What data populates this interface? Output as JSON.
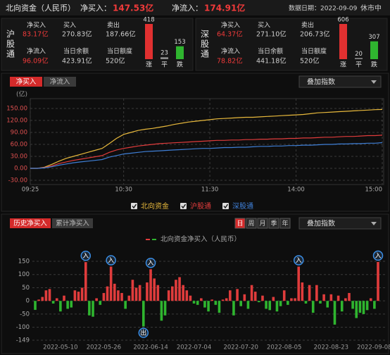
{
  "header": {
    "title": "北向资金（人民币）",
    "net_buy_label": "净买入：",
    "net_buy": "147.53亿",
    "net_inflow_label": "净流入：",
    "net_inflow": "174.91亿",
    "date": "数据日期：2022-09-09",
    "status": "休市中"
  },
  "panels": [
    {
      "name": "沪股通",
      "fields": [
        {
          "label": "净买入",
          "value": "83.17亿"
        },
        {
          "label": "买入",
          "value": "270.83亿"
        },
        {
          "label": "卖出",
          "value": "187.66亿"
        },
        {
          "label": "净流入",
          "value": "96.09亿"
        },
        {
          "label": "当日余额",
          "value": "423.91亿"
        },
        {
          "label": "当日额度",
          "value": "520亿"
        }
      ],
      "breadth": {
        "counts": [
          418,
          23,
          153
        ],
        "labels": [
          "涨",
          "平",
          "跌"
        ],
        "colors": [
          "#e03030",
          "#8a8a8a",
          "#2fb52f"
        ]
      }
    },
    {
      "name": "深股通",
      "fields": [
        {
          "label": "净买入",
          "value": "64.37亿"
        },
        {
          "label": "买入",
          "value": "271.10亿"
        },
        {
          "label": "卖出",
          "value": "206.73亿"
        },
        {
          "label": "净流入",
          "value": "78.82亿"
        },
        {
          "label": "当日余额",
          "value": "441.18亿"
        },
        {
          "label": "当日额度",
          "value": "520亿"
        }
      ],
      "breadth": {
        "counts": [
          606,
          20,
          307
        ],
        "labels": [
          "涨",
          "平",
          "跌"
        ],
        "colors": [
          "#e03030",
          "#8a8a8a",
          "#2fb52f"
        ]
      }
    }
  ],
  "controls": {
    "top_tabs": [
      "净买入",
      "净流入"
    ],
    "top_dropdown": "叠加指数",
    "bottom_tabs": [
      "历史净买入",
      "累计净买入"
    ],
    "periods": [
      "日",
      "周",
      "月",
      "季",
      "年"
    ],
    "bottom_dropdown": "叠加指数"
  },
  "chart_data": [
    {
      "type": "line",
      "y_unit": "(亿)",
      "grid": true,
      "categories": [
        "09:25",
        null,
        null,
        null,
        null,
        null,
        null,
        null,
        null,
        null,
        null,
        null,
        null,
        "10:30",
        null,
        null,
        null,
        null,
        null,
        null,
        null,
        null,
        null,
        null,
        null,
        "11:30",
        null,
        null,
        null,
        null,
        null,
        null,
        null,
        null,
        null,
        null,
        null,
        "14:00",
        null,
        null,
        null,
        null,
        null,
        null,
        null,
        null,
        null,
        null,
        null,
        "15:00"
      ],
      "ylim": [
        -30,
        150
      ],
      "yticks": [
        {
          "value": 150,
          "label": "150.00"
        },
        {
          "value": 120,
          "label": "120.00"
        },
        {
          "value": 90,
          "label": "90.00"
        },
        {
          "value": 60,
          "label": "60.00"
        },
        {
          "value": 30,
          "label": "30.00"
        },
        {
          "value": 0,
          "label": "0.00"
        },
        {
          "value": -30,
          "label": "-30.00"
        }
      ],
      "series": [
        {
          "name": "北向资金",
          "color": "#e8b93c",
          "values": [
            0,
            0,
            3,
            10,
            18,
            25,
            30,
            35,
            40,
            45,
            50,
            62,
            75,
            85,
            90,
            95,
            98,
            100,
            103,
            106,
            110,
            113,
            116,
            118,
            120,
            122,
            124,
            125,
            126,
            127,
            128,
            128,
            129,
            130,
            131,
            132,
            133,
            134,
            135,
            137,
            139,
            140,
            141,
            142,
            143,
            144,
            145,
            146,
            147,
            147.53
          ]
        },
        {
          "name": "沪股通",
          "color": "#e03c3c",
          "values": [
            0,
            0,
            2,
            6,
            12,
            16,
            20,
            23,
            26,
            29,
            32,
            40,
            46,
            50,
            53,
            56,
            58,
            60,
            62,
            63,
            64,
            65,
            66,
            67,
            68,
            69,
            70,
            70,
            71,
            71,
            72,
            72,
            73,
            73,
            74,
            74,
            75,
            75,
            76,
            76,
            77,
            78,
            78,
            79,
            80,
            80,
            81,
            82,
            82,
            83.17
          ]
        },
        {
          "name": "深股通",
          "color": "#3f7fd6",
          "values": [
            0,
            0,
            1,
            4,
            8,
            11,
            14,
            16,
            18,
            20,
            22,
            28,
            32,
            36,
            38,
            40,
            42,
            43,
            44,
            45,
            46,
            47,
            48,
            49,
            50,
            50,
            51,
            52,
            52,
            53,
            53,
            54,
            55,
            55,
            56,
            56,
            57,
            57,
            58,
            58,
            59,
            60,
            60,
            61,
            61,
            62,
            62,
            63,
            63,
            64.37
          ]
        }
      ]
    },
    {
      "type": "bar",
      "name": "北向资金净买入（人民币）",
      "grid": true,
      "colors": {
        "positive": "#e03c3c",
        "negative": "#2fb52f",
        "marker": "#3a8ee6"
      },
      "categories": [
        null,
        null,
        null,
        null,
        null,
        null,
        null,
        "2022-05-10",
        null,
        null,
        null,
        null,
        null,
        null,
        null,
        null,
        null,
        null,
        null,
        "2022-05-26",
        null,
        null,
        null,
        null,
        null,
        null,
        null,
        null,
        null,
        null,
        null,
        null,
        "2022-06-14",
        null,
        null,
        null,
        null,
        null,
        null,
        null,
        null,
        null,
        null,
        null,
        "2022-07-04",
        null,
        null,
        null,
        null,
        null,
        null,
        null,
        null,
        null,
        null,
        null,
        null,
        "2022-07-20",
        null,
        null,
        null,
        null,
        null,
        null,
        null,
        null,
        null,
        null,
        null,
        "2022-08-05",
        null,
        null,
        null,
        null,
        null,
        null,
        null,
        null,
        null,
        null,
        null,
        null,
        "2022-08-23",
        null,
        null,
        null,
        null,
        null,
        null,
        null,
        null,
        null,
        null,
        null,
        "2022-09-08",
        null
      ],
      "values": [
        -34,
        5,
        15,
        40,
        45,
        -10,
        10,
        -40,
        20,
        -30,
        -25,
        40,
        35,
        50,
        147,
        -55,
        -60,
        10,
        -15,
        30,
        55,
        130,
        65,
        40,
        30,
        -30,
        20,
        80,
        50,
        60,
        -97,
        70,
        120,
        85,
        60,
        -75,
        -55,
        40,
        55,
        80,
        90,
        60,
        40,
        20,
        -10,
        -15,
        10,
        -25,
        -40,
        5,
        -15,
        -45,
        5,
        10,
        40,
        -55,
        45,
        -20,
        25,
        -30,
        60,
        35,
        -5,
        20,
        -30,
        -35,
        15,
        -40,
        -20,
        40,
        -15,
        10,
        10,
        130,
        70,
        -10,
        60,
        -45,
        60,
        -10,
        25,
        -25,
        25,
        -90,
        20,
        -40,
        10,
        30,
        -30,
        -65,
        -45,
        -50,
        -35,
        10,
        -30,
        147.53
      ],
      "markers": [
        null,
        null,
        null,
        null,
        null,
        null,
        null,
        null,
        null,
        null,
        null,
        null,
        null,
        null,
        "入",
        null,
        null,
        null,
        null,
        null,
        null,
        "入",
        null,
        null,
        null,
        null,
        null,
        null,
        null,
        null,
        "出",
        null,
        "入",
        null,
        null,
        null,
        null,
        null,
        null,
        null,
        null,
        null,
        null,
        null,
        null,
        null,
        null,
        null,
        null,
        null,
        null,
        null,
        null,
        null,
        null,
        null,
        null,
        null,
        null,
        null,
        null,
        null,
        null,
        null,
        null,
        null,
        null,
        null,
        null,
        null,
        null,
        null,
        null,
        "入",
        null,
        null,
        null,
        null,
        null,
        null,
        null,
        null,
        null,
        null,
        null,
        null,
        null,
        null,
        null,
        null,
        null,
        null,
        null,
        null,
        null,
        "入"
      ],
      "ylim": [
        -149,
        150
      ],
      "yticks": [
        150,
        100,
        50,
        0,
        -50,
        -100,
        -149
      ]
    }
  ]
}
